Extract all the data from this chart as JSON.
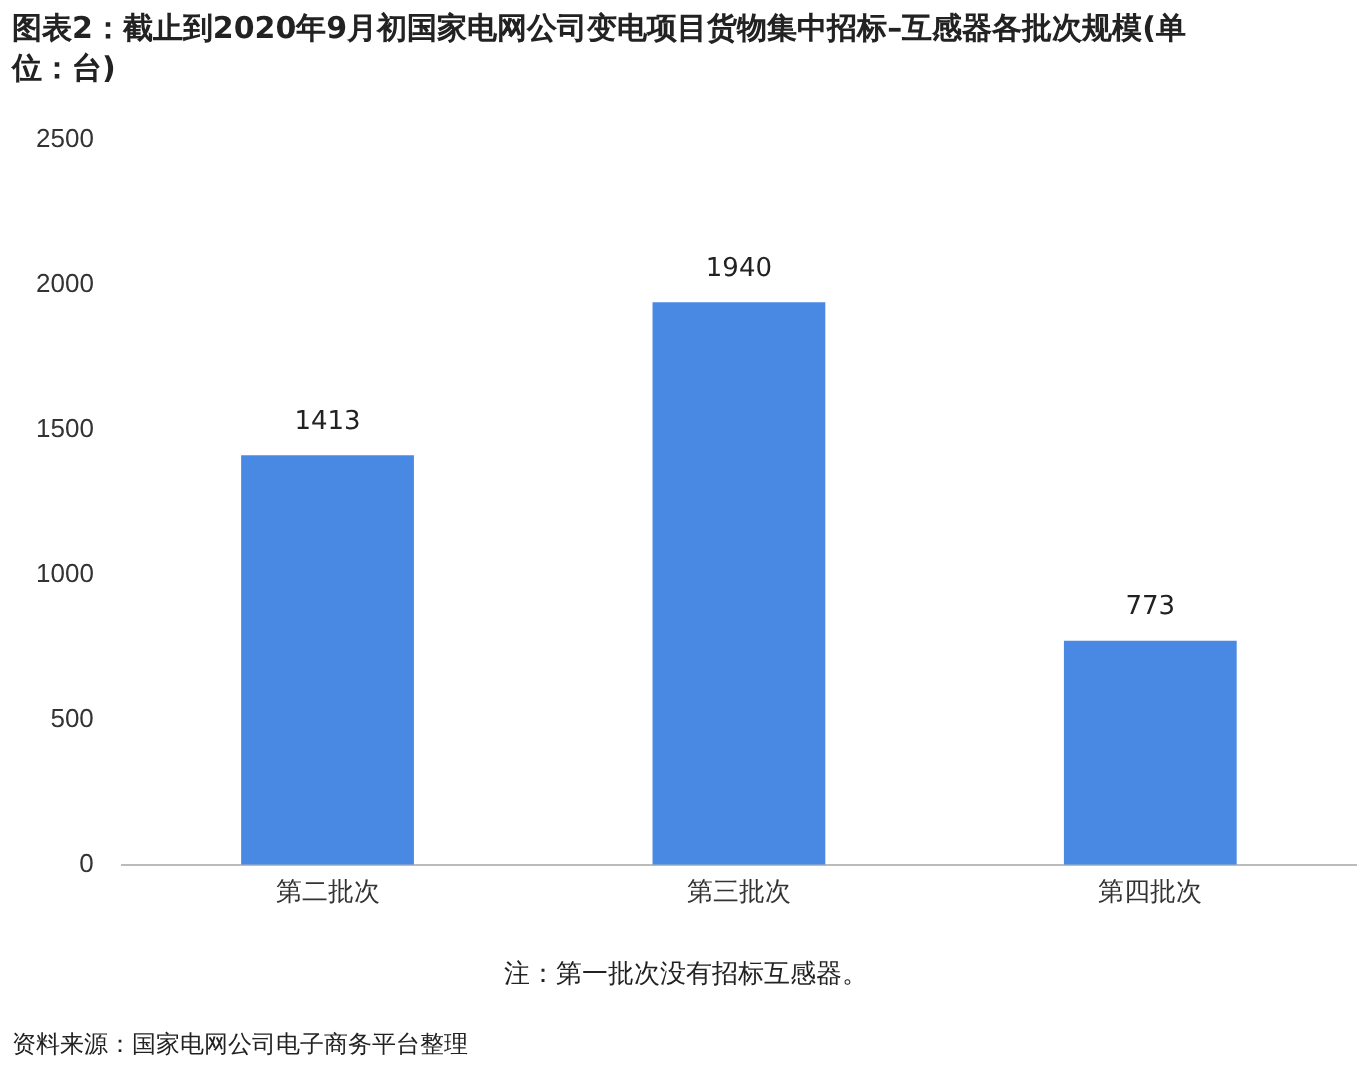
{
  "chart_data": {
    "type": "bar",
    "title": "图表2：截止到2020年9月初国家电网公司变电项目货物集中招标–互感器各批次规模(单位：台)",
    "categories": [
      "第二批次",
      "第三批次",
      "第四批次"
    ],
    "values": [
      1413,
      1940,
      773
    ],
    "color": "#4a89e3",
    "ylim": [
      0,
      2500
    ],
    "yticks": [
      0,
      500,
      1000,
      1500,
      2000,
      2500
    ],
    "grid": false,
    "data_labels": true,
    "legend": false,
    "annotations": [
      "注：第一批次没有招标互感器。",
      "资料来源：国家电网公司电子商务平台整理"
    ]
  }
}
